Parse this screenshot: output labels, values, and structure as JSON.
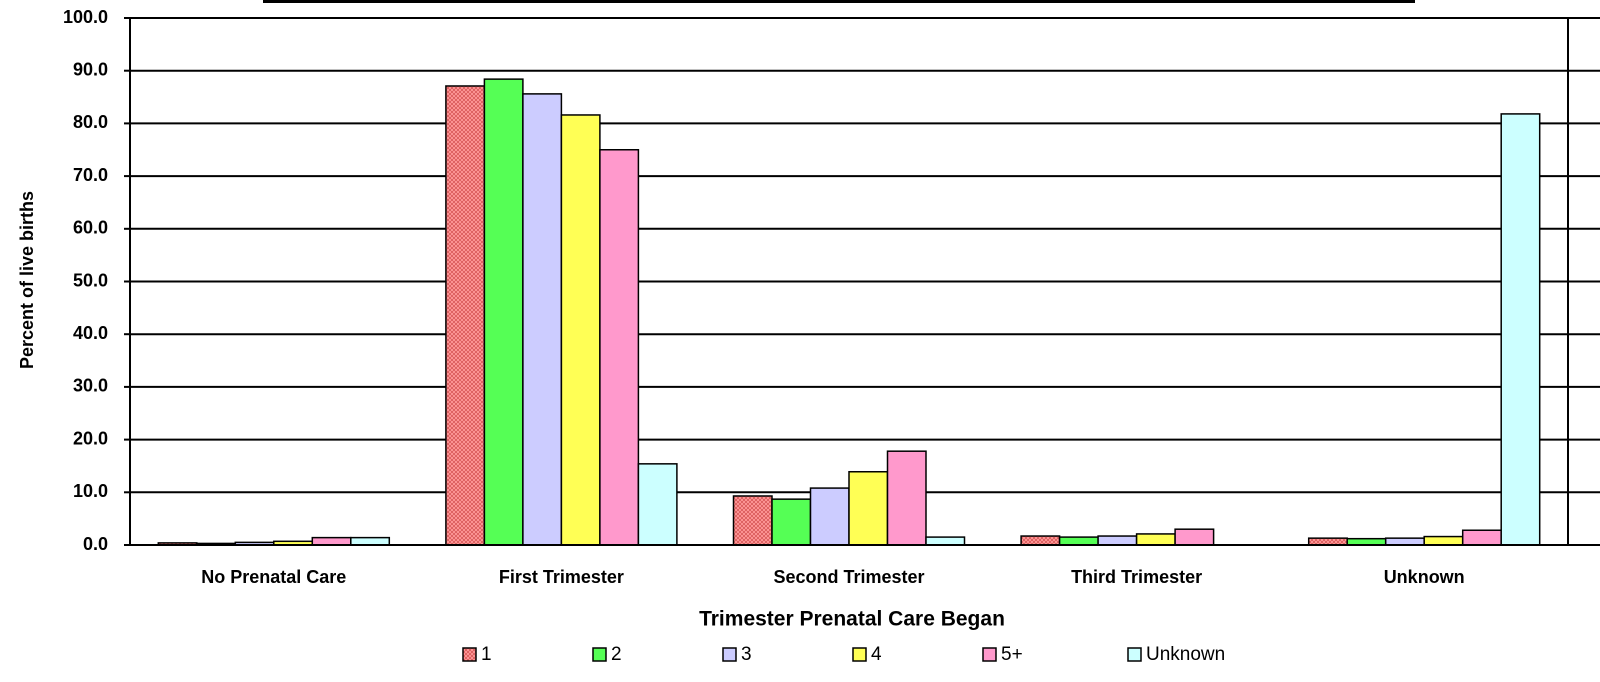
{
  "chart_data": {
    "type": "bar",
    "x_label": "Trimester Prenatal Care Began",
    "y_label": "Percent of live births",
    "categories": [
      "No Prenatal Care",
      "First Trimester",
      "Second Trimester",
      "Third Trimester",
      "Unknown"
    ],
    "series": [
      {
        "name": "1",
        "color": "#ff9999",
        "values": [
          0.4,
          87.1,
          9.3,
          1.7,
          1.3
        ]
      },
      {
        "name": "2",
        "color": "#55ff55",
        "values": [
          0.3,
          88.4,
          8.7,
          1.5,
          1.2
        ]
      },
      {
        "name": "3",
        "color": "#ccccff",
        "values": [
          0.5,
          85.6,
          10.8,
          1.7,
          1.3
        ]
      },
      {
        "name": "4",
        "color": "#ffff55",
        "values": [
          0.7,
          81.6,
          13.9,
          2.1,
          1.6
        ]
      },
      {
        "name": "5+",
        "color": "#ff99cc",
        "values": [
          1.4,
          75.0,
          17.8,
          3.0,
          2.8
        ]
      },
      {
        "name": "Unknown",
        "color": "#ccffff",
        "values": [
          1.4,
          15.4,
          1.5,
          0,
          81.8
        ]
      }
    ],
    "ylim": [
      0,
      100
    ],
    "yticks": [
      {
        "value": 0,
        "label": "0.0"
      },
      {
        "value": 10,
        "label": "10.0"
      },
      {
        "value": 20,
        "label": "20.0"
      },
      {
        "value": 30,
        "label": "30.0"
      },
      {
        "value": 40,
        "label": "40.0"
      },
      {
        "value": 50,
        "label": "50.0"
      },
      {
        "value": 60,
        "label": "60.0"
      },
      {
        "value": 70,
        "label": "70.0"
      },
      {
        "value": 80,
        "label": "80.0"
      },
      {
        "value": 90,
        "label": "90.0"
      },
      {
        "value": 100,
        "label": "100.0"
      }
    ],
    "grid": true
  }
}
